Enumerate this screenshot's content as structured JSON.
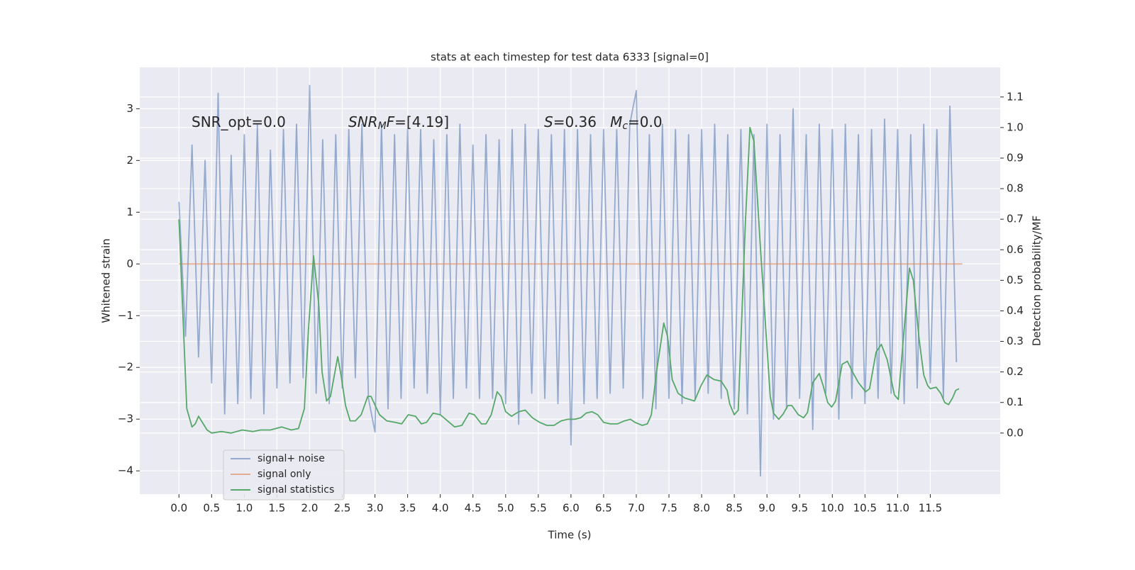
{
  "chart_data": {
    "type": "line",
    "title": "stats at each timestep for test data 6333 [signal=0]",
    "xlabel": "Time (s)",
    "ylabel": "Whitened strain",
    "y2label": "Detection probability/MF",
    "xlim": [
      -0.6,
      12.57
    ],
    "ylim": [
      -4.45,
      3.8
    ],
    "y2lim": [
      -0.2,
      1.197
    ],
    "xticks": [
      {
        "value": 0,
        "label": "0.0"
      },
      0.5,
      {
        "value": 1,
        "label": "1.0"
      },
      1.5,
      {
        "value": 2,
        "label": "2.0"
      },
      2.5,
      {
        "value": 3,
        "label": "3.0"
      },
      3.5,
      {
        "value": 4,
        "label": "4.0"
      },
      4.5,
      {
        "value": 5,
        "label": "5.0"
      },
      5.5,
      {
        "value": 6,
        "label": "6.0"
      },
      6.5,
      {
        "value": 7,
        "label": "7.0"
      },
      7.5,
      {
        "value": 8,
        "label": "8.0"
      },
      8.5,
      {
        "value": 9,
        "label": "9.0"
      },
      9.5,
      {
        "value": 10,
        "label": "10.0"
      },
      10.5,
      {
        "value": 11,
        "label": "11.0"
      },
      11.5
    ],
    "yticks": [
      {
        "value": -4,
        "label": "−4"
      },
      {
        "value": -3,
        "label": "−3"
      },
      {
        "value": -2,
        "label": "−2"
      },
      {
        "value": -1,
        "label": "−1"
      },
      0,
      1,
      2,
      3
    ],
    "y2ticks": [
      {
        "value": 0,
        "label": "0.0"
      },
      0.1,
      0.2,
      0.3,
      0.4,
      0.5,
      0.6,
      0.7,
      0.8,
      0.9,
      {
        "value": 1,
        "label": "1.0"
      },
      1.1
    ],
    "grid": true,
    "legend": "lower left",
    "annotations": [
      {
        "parts": [
          {
            "text": "SNR_opt=0.0"
          }
        ]
      },
      {
        "parts": [
          {
            "text": "SNR",
            "style": "italic"
          },
          {
            "text": "M",
            "style": "italic-sub"
          },
          {
            "text": "F",
            "style": "italic"
          },
          {
            "text": "=[4.19]"
          }
        ]
      },
      {
        "parts": [
          {
            "text": "S",
            "style": "italic"
          },
          {
            "text": "=0.36   "
          },
          {
            "text": "M",
            "style": "italic"
          },
          {
            "text": "c",
            "style": "italic-sub"
          },
          {
            "text": "=0.0"
          }
        ]
      }
    ],
    "series": [
      {
        "name": "signal+ noise",
        "color": "#4c72b0",
        "opacity": 0.55,
        "x": [
          0,
          0.1,
          0.2,
          0.3,
          0.4,
          0.5,
          0.6,
          0.7,
          0.8,
          0.9,
          1,
          1.1,
          1.2,
          1.3,
          1.4,
          1.5,
          1.6,
          1.7,
          1.8,
          1.9,
          2,
          2.1,
          2.2,
          2.3,
          2.4,
          2.5,
          2.6,
          2.7,
          2.8,
          2.9,
          3,
          3.1,
          3.2,
          3.3,
          3.4,
          3.5,
          3.6,
          3.7,
          3.8,
          3.9,
          4,
          4.1,
          4.2,
          4.3,
          4.4,
          4.5,
          4.6,
          4.7,
          4.8,
          4.9,
          5,
          5.1,
          5.2,
          5.3,
          5.4,
          5.5,
          5.6,
          5.7,
          5.8,
          5.9,
          6,
          6.1,
          6.2,
          6.3,
          6.4,
          6.5,
          6.6,
          6.7,
          6.8,
          6.9,
          7,
          7.1,
          7.2,
          7.3,
          7.4,
          7.5,
          7.6,
          7.7,
          7.8,
          7.9,
          8,
          8.1,
          8.2,
          8.3,
          8.4,
          8.5,
          8.6,
          8.7,
          8.8,
          8.9,
          9,
          9.1,
          9.2,
          9.3,
          9.4,
          9.5,
          9.6,
          9.7,
          9.8,
          9.9,
          10,
          10.1,
          10.2,
          10.3,
          10.4,
          10.5,
          10.6,
          10.7,
          10.8,
          10.9,
          11,
          11.1,
          11.2,
          11.3,
          11.4,
          11.5,
          11.6,
          11.7,
          11.8,
          11.9
        ],
        "values": [
          1.2,
          -1.4,
          2.3,
          -1.8,
          2.0,
          -2.3,
          3.3,
          -2.9,
          2.1,
          -2.7,
          2.5,
          -2.6,
          2.7,
          -2.9,
          2.2,
          -2.4,
          2.6,
          -2.3,
          2.7,
          -2.2,
          3.45,
          -2.5,
          2.4,
          -2.7,
          2.5,
          -2.4,
          2.6,
          -2.2,
          2.7,
          -2.6,
          -3.25,
          2.7,
          -2.8,
          2.5,
          -2.6,
          2.6,
          -2.4,
          2.6,
          -2.5,
          2.4,
          -2.9,
          2.5,
          -2.6,
          2.7,
          -2.4,
          2.3,
          -2.6,
          2.5,
          -2.6,
          2.4,
          -2.7,
          2.6,
          -3.1,
          2.7,
          -2.5,
          2.6,
          -2.6,
          2.5,
          -2.7,
          2.6,
          -3.5,
          2.6,
          -2.7,
          2.5,
          -2.6,
          2.6,
          -2.5,
          2.6,
          -2.4,
          2.7,
          3.35,
          -2.6,
          2.5,
          -2.8,
          2.7,
          -2.6,
          2.6,
          -2.7,
          2.5,
          -2.6,
          2.6,
          -2.5,
          2.7,
          -2.6,
          2.5,
          -2.8,
          2.6,
          -2.9,
          2.5,
          -4.1,
          2.7,
          -3.0,
          2.5,
          -2.8,
          3.0,
          -2.6,
          2.5,
          -3.2,
          2.7,
          -2.5,
          2.6,
          -3.0,
          2.7,
          -2.6,
          2.5,
          -2.7,
          2.6,
          -2.6,
          2.8,
          -2.5,
          2.6,
          -2.7,
          2.5,
          -2.4,
          2.7,
          -2.3,
          2.6,
          -2.6,
          3.05,
          -1.9
        ]
      },
      {
        "name": "signal only",
        "color": "#dd8452",
        "opacity": 0.6,
        "x": [
          0,
          11.99
        ],
        "values": [
          0,
          0
        ]
      },
      {
        "name": "signal statistics",
        "color": "#55a868",
        "opacity": 1,
        "axis": "y2",
        "x": [
          0,
          0.12,
          0.2,
          0.25,
          0.3,
          0.43,
          0.5,
          0.65,
          0.8,
          0.97,
          1.13,
          1.25,
          1.4,
          1.57,
          1.72,
          1.83,
          1.92,
          1.98,
          2.06,
          2.14,
          2.19,
          2.26,
          2.32,
          2.43,
          2.48,
          2.55,
          2.62,
          2.7,
          2.79,
          2.89,
          2.94,
          3.07,
          3.18,
          3.31,
          3.41,
          3.51,
          3.62,
          3.71,
          3.79,
          3.89,
          4.0,
          4.11,
          4.22,
          4.33,
          4.44,
          4.52,
          4.63,
          4.7,
          4.78,
          4.87,
          4.93,
          5.0,
          5.09,
          5.2,
          5.3,
          5.41,
          5.52,
          5.63,
          5.74,
          5.85,
          5.95,
          6.06,
          6.15,
          6.23,
          6.32,
          6.41,
          6.5,
          6.6,
          6.71,
          6.82,
          6.91,
          6.98,
          7.09,
          7.17,
          7.23,
          7.31,
          7.42,
          7.48,
          7.55,
          7.64,
          7.74,
          7.89,
          7.99,
          8.08,
          8.19,
          8.3,
          8.39,
          8.43,
          8.5,
          8.56,
          8.67,
          8.74,
          8.8,
          8.9,
          9.05,
          9.1,
          9.18,
          9.25,
          9.32,
          9.38,
          9.48,
          9.56,
          9.62,
          9.7,
          9.8,
          9.86,
          9.93,
          9.99,
          10.05,
          10.15,
          10.23,
          10.31,
          10.4,
          10.51,
          10.57,
          10.67,
          10.75,
          10.84,
          10.95,
          11.01,
          11.08,
          11.18,
          11.24,
          11.33,
          11.4,
          11.46,
          11.5,
          11.59,
          11.66,
          11.72,
          11.78,
          11.84,
          11.89,
          11.94
        ],
        "values": [
          0.7,
          0.08,
          0.02,
          0.03,
          0.055,
          0.01,
          0.0,
          0.005,
          0.0,
          0.01,
          0.005,
          0.01,
          0.01,
          0.02,
          0.01,
          0.015,
          0.08,
          0.33,
          0.58,
          0.42,
          0.2,
          0.105,
          0.12,
          0.25,
          0.19,
          0.09,
          0.04,
          0.04,
          0.06,
          0.12,
          0.12,
          0.06,
          0.04,
          0.035,
          0.03,
          0.06,
          0.055,
          0.03,
          0.035,
          0.065,
          0.06,
          0.04,
          0.02,
          0.025,
          0.065,
          0.06,
          0.03,
          0.03,
          0.06,
          0.135,
          0.12,
          0.07,
          0.055,
          0.07,
          0.075,
          0.05,
          0.035,
          0.025,
          0.025,
          0.04,
          0.045,
          0.045,
          0.05,
          0.065,
          0.07,
          0.06,
          0.035,
          0.03,
          0.03,
          0.04,
          0.045,
          0.035,
          0.025,
          0.03,
          0.06,
          0.2,
          0.36,
          0.315,
          0.175,
          0.13,
          0.115,
          0.105,
          0.155,
          0.19,
          0.175,
          0.17,
          0.14,
          0.095,
          0.06,
          0.075,
          0.69,
          1.0,
          0.955,
          0.605,
          0.12,
          0.065,
          0.045,
          0.063,
          0.09,
          0.09,
          0.06,
          0.05,
          0.067,
          0.165,
          0.195,
          0.155,
          0.1,
          0.085,
          0.105,
          0.225,
          0.235,
          0.2,
          0.165,
          0.135,
          0.145,
          0.265,
          0.29,
          0.24,
          0.125,
          0.11,
          0.29,
          0.54,
          0.5,
          0.305,
          0.19,
          0.155,
          0.145,
          0.15,
          0.13,
          0.1,
          0.093,
          0.115,
          0.14,
          0.145
        ]
      }
    ]
  }
}
